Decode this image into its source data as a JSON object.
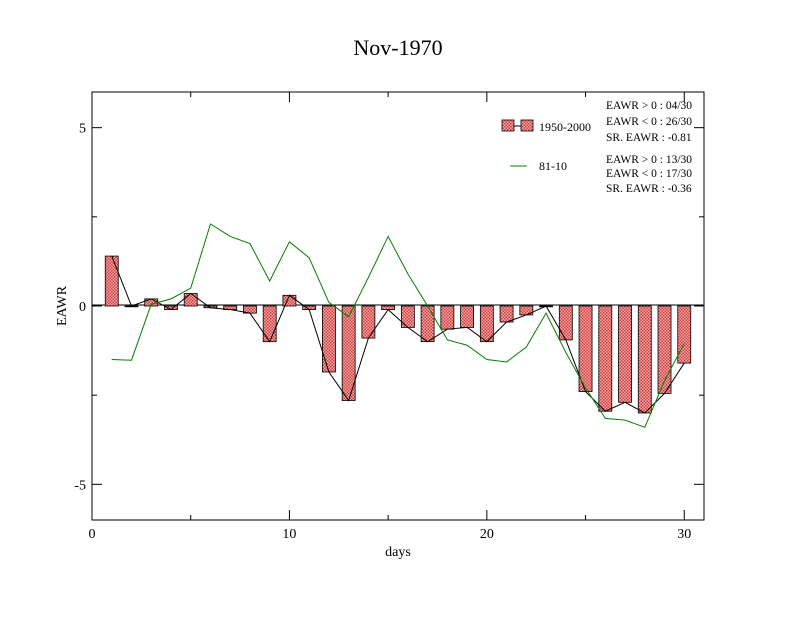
{
  "chart_data": {
    "type": "bar",
    "title": "Nov-1970",
    "xlabel": "days",
    "ylabel": "EAWR",
    "xlim": [
      0,
      31
    ],
    "ylim": [
      -6,
      6
    ],
    "x_ticks": [
      0,
      10,
      20,
      30
    ],
    "y_ticks": [
      -5,
      0,
      5
    ],
    "x": [
      1,
      2,
      3,
      4,
      5,
      6,
      7,
      8,
      9,
      10,
      11,
      12,
      13,
      14,
      15,
      16,
      17,
      18,
      19,
      20,
      21,
      22,
      23,
      24,
      25,
      26,
      27,
      28,
      29,
      30
    ],
    "series": [
      {
        "name": "1950-2000",
        "kind": "bar",
        "values": [
          1.4,
          0.0,
          0.2,
          -0.1,
          0.35,
          -0.05,
          -0.1,
          -0.2,
          -1.0,
          0.3,
          -0.1,
          -1.85,
          -2.65,
          -0.9,
          -0.1,
          -0.6,
          -1.0,
          -0.65,
          -0.6,
          -1.0,
          -0.45,
          -0.25,
          0.0,
          -0.95,
          -2.4,
          -2.95,
          -2.7,
          -3.0,
          -2.45,
          -1.6
        ],
        "color": "#e06666"
      },
      {
        "name": "81-10",
        "kind": "line",
        "values": [
          -1.5,
          -1.52,
          0.05,
          0.2,
          0.5,
          2.3,
          1.95,
          1.75,
          0.7,
          1.8,
          1.35,
          0.1,
          -0.3,
          0.8,
          1.95,
          0.9,
          0.0,
          -0.95,
          -1.1,
          -1.5,
          -1.57,
          -1.15,
          -0.2,
          -1.3,
          -2.3,
          -3.15,
          -3.2,
          -3.4,
          -2.1,
          -1.05
        ],
        "color": "#008000"
      }
    ],
    "legend": {
      "position": "top-right",
      "entries": [
        {
          "label": "1950-2000",
          "stats": [
            "EAWR > 0 : 04/30",
            "EAWR < 0 : 26/30",
            "SR. EAWR : -0.81"
          ]
        },
        {
          "label": "81-10",
          "stats": [
            "EAWR > 0 : 13/30",
            "EAWR < 0 : 17/30",
            "SR. EAWR : -0.36"
          ]
        }
      ]
    },
    "grid": false
  }
}
